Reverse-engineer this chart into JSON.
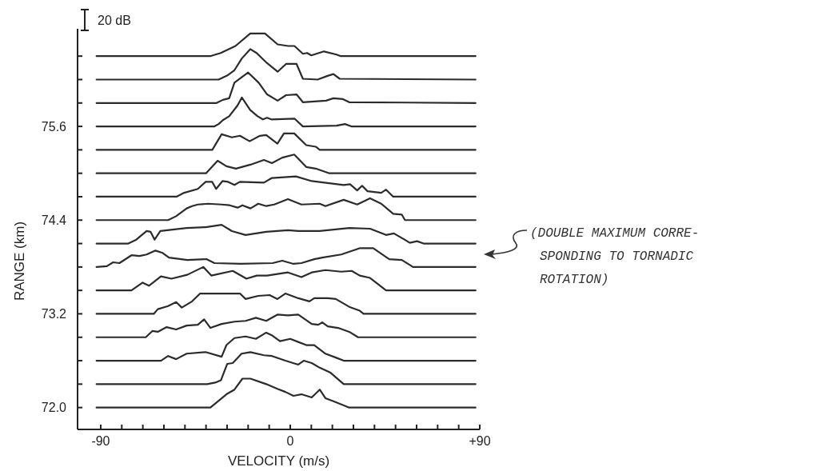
{
  "chart_data": {
    "type": "line",
    "xlabel": "VELOCITY (m/s)",
    "ylabel": "RANGE (km)",
    "xlim": [
      -101,
      90
    ],
    "ylim": [
      71.72,
      76.85
    ],
    "xticks": [
      {
        "value": -90,
        "label": "-90"
      },
      {
        "value": -80,
        "label": null
      },
      {
        "value": -70,
        "label": null
      },
      {
        "value": -60,
        "label": null
      },
      {
        "value": -50,
        "label": null
      },
      {
        "value": -40,
        "label": null
      },
      {
        "value": -30,
        "label": null
      },
      {
        "value": -20,
        "label": null
      },
      {
        "value": -10,
        "label": null
      },
      0,
      {
        "value": 10,
        "label": null
      },
      {
        "value": 20,
        "label": null
      },
      {
        "value": 30,
        "label": null
      },
      {
        "value": 40,
        "label": null
      },
      {
        "value": 50,
        "label": null
      },
      {
        "value": 60,
        "label": null
      },
      {
        "value": 70,
        "label": null
      },
      {
        "value": 80,
        "label": null
      },
      {
        "value": 90,
        "label": "+90"
      }
    ],
    "yticks": [
      {
        "value": 72,
        "label": "72.0"
      },
      {
        "value": 72.3,
        "label": null
      },
      {
        "value": 72.6,
        "label": null
      },
      {
        "value": 72.9,
        "label": null
      },
      73.2,
      {
        "value": 73.5,
        "label": null
      },
      {
        "value": 73.8,
        "label": null
      },
      {
        "value": 74.1,
        "label": null
      },
      74.4,
      {
        "value": 74.7,
        "label": null
      },
      {
        "value": 75,
        "label": null
      },
      {
        "value": 75.3,
        "label": null
      },
      75.6,
      {
        "value": 75.9,
        "label": null
      },
      {
        "value": 76.2,
        "label": null
      },
      {
        "value": 76.5,
        "label": null
      }
    ],
    "grid": false,
    "line_style": "solid",
    "marker": "none",
    "annotations": [
      "20 dB",
      "(DOUBLE MAXIMUM CORRE-\nSPONDING TO TORNADIC\nROTATION)"
    ],
    "series": [
      {
        "color": "#2b2b2b",
        "x": [
          -92,
          -38,
          -33,
          -26,
          -19,
          -12,
          -6,
          -1,
          2,
          6,
          8,
          10,
          16,
          22,
          24,
          88
        ],
        "values": [
          76.5,
          76.5,
          76.54,
          76.63,
          76.79,
          76.79,
          76.65,
          76.63,
          76.63,
          76.53,
          76.54,
          76.51,
          76.56,
          76.52,
          76.5,
          76.5
        ]
      },
      {
        "color": "#2b2b2b",
        "x": [
          -92,
          -34,
          -30,
          -26.5,
          -23,
          -19,
          -16,
          -11,
          -6,
          -2,
          3,
          6,
          13,
          18,
          20.5,
          23.5,
          88
        ],
        "values": [
          76.2,
          76.2,
          76.25,
          76.32,
          76.47,
          76.59,
          76.54,
          76.41,
          76.3,
          76.4,
          76.4,
          76.21,
          76.2,
          76.25,
          76.27,
          76.21,
          76.2
        ]
      },
      {
        "color": "#2b2b2b",
        "x": [
          -92,
          -35,
          -32,
          -29,
          -26.5,
          -20,
          -15,
          -11,
          -6,
          -2,
          3,
          6,
          17,
          20.5,
          25,
          28,
          88
        ],
        "values": [
          75.9,
          75.9,
          75.94,
          75.96,
          76.16,
          76.29,
          76.16,
          76.01,
          75.93,
          76.0,
          76.01,
          75.91,
          75.93,
          75.96,
          75.95,
          75.91,
          75.9
        ]
      },
      {
        "color": "#2b2b2b",
        "x": [
          -92,
          -36,
          -34,
          -32,
          -29,
          -25,
          -23,
          -19,
          -15.5,
          -13,
          -11,
          -9,
          2,
          6,
          22,
          26,
          29,
          88
        ],
        "values": [
          75.6,
          75.6,
          75.63,
          75.68,
          75.73,
          75.87,
          75.97,
          75.81,
          75.73,
          75.69,
          75.71,
          75.69,
          75.7,
          75.6,
          75.61,
          75.63,
          75.6,
          75.6
        ]
      },
      {
        "color": "#2b2b2b",
        "x": [
          -92,
          -37,
          -32.6,
          -27.7,
          -23.9,
          -19.3,
          -14.4,
          -11.4,
          -6.1,
          -3,
          1.9,
          7.6,
          12.1,
          14,
          88
        ],
        "values": [
          75.3,
          75.3,
          75.5,
          75.46,
          75.48,
          75.41,
          75.48,
          75.49,
          75.38,
          75.51,
          75.51,
          75.36,
          75.34,
          75.3,
          75.3
        ]
      },
      {
        "color": "#2b2b2b",
        "x": [
          -92,
          -40,
          -34.5,
          -30.3,
          -25.8,
          -18.9,
          -12.5,
          -8.7,
          -3.8,
          1.9,
          7.6,
          12.1,
          18.6,
          88
        ],
        "values": [
          75.0,
          75.0,
          75.16,
          75.09,
          75.06,
          75.11,
          75.17,
          75.13,
          75.2,
          75.24,
          75.08,
          75.06,
          75.0,
          75.0
        ]
      },
      {
        "color": "#2b2b2b",
        "x": [
          -92,
          -54,
          -50.4,
          -43.9,
          -40.2,
          -37.1,
          -35.2,
          -32.2,
          -29.5,
          -26.5,
          -23.9,
          -12.5,
          -8.7,
          2.7,
          10.2,
          25.4,
          28.4,
          31.8,
          34.1,
          36.7,
          43.2,
          45.5,
          48.9,
          88
        ],
        "values": [
          74.7,
          74.7,
          74.75,
          74.8,
          74.89,
          74.89,
          74.8,
          74.9,
          74.89,
          74.85,
          74.89,
          74.88,
          74.94,
          74.96,
          74.9,
          74.85,
          74.86,
          74.78,
          74.84,
          74.77,
          74.75,
          74.79,
          74.7,
          74.7
        ]
      },
      {
        "color": "#2b2b2b",
        "x": [
          -92,
          -58,
          -54.2,
          -49.2,
          -46.6,
          -43.9,
          -39,
          -32.6,
          -28.8,
          -25,
          -22.7,
          -18.9,
          -15.2,
          -11.4,
          -7.6,
          -1.1,
          5.3,
          14,
          16.7,
          25.4,
          31.8,
          37.9,
          43.2,
          48.9,
          53,
          54.5,
          88
        ],
        "values": [
          74.4,
          74.4,
          74.45,
          74.55,
          74.58,
          74.6,
          74.61,
          74.6,
          74.59,
          74.56,
          74.59,
          74.55,
          74.61,
          74.58,
          74.6,
          74.67,
          74.6,
          74.61,
          74.58,
          74.66,
          74.6,
          74.68,
          74.61,
          74.48,
          74.47,
          74.4,
          74.4
        ]
      },
      {
        "color": "#2b2b2b",
        "x": [
          -92,
          -76.9,
          -73.1,
          -68.2,
          -66.3,
          -64.4,
          -61.7,
          -49.2,
          -40.2,
          -32.6,
          -27.7,
          -21.2,
          -11.4,
          -1.1,
          3.8,
          14,
          28,
          37.9,
          45.5,
          49.2,
          56.8,
          60.2,
          63.3,
          88
        ],
        "values": [
          74.1,
          74.1,
          74.15,
          74.26,
          74.25,
          74.15,
          74.26,
          74.3,
          74.31,
          74.34,
          74.26,
          74.21,
          74.25,
          74.27,
          74.26,
          74.26,
          74.3,
          74.29,
          74.21,
          74.23,
          74.11,
          74.13,
          74.1,
          74.1
        ]
      },
      {
        "color": "#2b2b2b",
        "x": [
          -92,
          -87.1,
          -84.1,
          -81.1,
          -75.4,
          -71.6,
          -68.2,
          -64,
          -60.6,
          -57.6,
          -48.9,
          -39.8,
          -36,
          -23.5,
          -8.3,
          -3.8,
          1.5,
          5.3,
          11.4,
          15.2,
          24.2,
          32.9,
          39.4,
          47,
          53,
          58.3,
          88
        ],
        "values": [
          73.8,
          73.81,
          73.86,
          73.85,
          73.95,
          73.94,
          73.96,
          74.01,
          73.98,
          73.92,
          73.89,
          73.9,
          73.85,
          73.84,
          73.85,
          73.88,
          73.84,
          73.85,
          73.9,
          73.92,
          73.96,
          74.04,
          74.04,
          73.9,
          73.89,
          73.8,
          73.8
        ]
      },
      {
        "color": "#2b2b2b",
        "x": [
          -92,
          -75.4,
          -70.1,
          -67.1,
          -61.4,
          -56.4,
          -48.9,
          -41.3,
          -37.5,
          -27.3,
          -20.8,
          -15.9,
          -11,
          -1.1,
          5.3,
          10.2,
          16.7,
          24.2,
          29.2,
          33,
          37.9,
          45.5,
          88
        ],
        "values": [
          73.5,
          73.5,
          73.6,
          73.56,
          73.68,
          73.65,
          73.7,
          73.8,
          73.69,
          73.75,
          73.65,
          73.69,
          73.69,
          73.73,
          73.67,
          73.73,
          73.76,
          73.74,
          73.75,
          73.69,
          73.66,
          73.5,
          73.5
        ]
      },
      {
        "color": "#2b2b2b",
        "x": [
          -92,
          -64.8,
          -62.9,
          -58,
          -54.2,
          -51.5,
          -46.6,
          -42.8,
          -36.4,
          -23.9,
          -21.2,
          -15.2,
          -9.8,
          -6.1,
          -2.3,
          3.8,
          9.1,
          11.4,
          17.8,
          21.6,
          28,
          33,
          34.8,
          88
        ],
        "values": [
          73.2,
          73.2,
          73.26,
          73.3,
          73.35,
          73.28,
          73.36,
          73.46,
          73.46,
          73.46,
          73.39,
          73.43,
          73.44,
          73.39,
          73.46,
          73.4,
          73.36,
          73.4,
          73.4,
          73.39,
          73.29,
          73.24,
          73.2,
          73.2
        ]
      },
      {
        "color": "#2b2b2b",
        "x": [
          -92,
          -68.6,
          -65.5,
          -62.9,
          -58.7,
          -54.2,
          -49.2,
          -43.9,
          -40.9,
          -37.9,
          -32.6,
          -26.5,
          -21.2,
          -16.3,
          -11.4,
          -6.1,
          -1.1,
          3.8,
          10.2,
          13.3,
          15.2,
          17.8,
          22.7,
          28,
          32.2,
          88
        ],
        "values": [
          72.9,
          72.9,
          72.98,
          72.97,
          73.03,
          73.0,
          73.05,
          73.06,
          73.13,
          73.02,
          73.07,
          73.1,
          73.11,
          73.15,
          73.11,
          73.19,
          73.18,
          73.19,
          73.07,
          73.06,
          73.09,
          73.04,
          73.02,
          72.97,
          72.9,
          72.9
        ]
      },
      {
        "color": "#2b2b2b",
        "x": [
          -92,
          -61.4,
          -58,
          -54.2,
          -49.2,
          -40.2,
          -32.6,
          -30.3,
          -26.5,
          -21.2,
          -16.3,
          -11.4,
          -8.4,
          -4.9,
          0,
          3.8,
          7.6,
          11.4,
          16.7,
          21.6,
          25.4,
          88
        ],
        "values": [
          72.6,
          72.6,
          72.66,
          72.62,
          72.69,
          72.71,
          72.65,
          72.8,
          72.89,
          72.91,
          72.88,
          72.96,
          72.92,
          72.85,
          72.88,
          72.84,
          72.8,
          72.8,
          72.69,
          72.64,
          72.6,
          72.6
        ]
      },
      {
        "color": "#2b2b2b",
        "x": [
          -92,
          -39.4,
          -35.6,
          -32.9,
          -29.9,
          -27.3,
          -23.1,
          -18.9,
          -12.5,
          -8.7,
          -2.3,
          3.8,
          6.4,
          10.2,
          14,
          18.9,
          25.4,
          88
        ],
        "values": [
          72.3,
          72.3,
          72.32,
          72.35,
          72.56,
          72.57,
          72.69,
          72.71,
          72.67,
          72.66,
          72.6,
          72.55,
          72.6,
          72.57,
          72.51,
          72.45,
          72.3,
          72.3
        ]
      },
      {
        "color": "#2b2b2b",
        "x": [
          -92,
          -37.9,
          -30.3,
          -26.5,
          -22.7,
          -18.9,
          -11.4,
          -6.1,
          -2.3,
          1.5,
          5.3,
          10.2,
          14,
          16.7,
          20.5,
          28,
          88
        ],
        "values": [
          72.0,
          72.0,
          72.17,
          72.23,
          72.37,
          72.37,
          72.3,
          72.24,
          72.2,
          72.15,
          72.17,
          72.13,
          72.23,
          72.12,
          72.08,
          72.0,
          72.0
        ]
      }
    ]
  }
}
